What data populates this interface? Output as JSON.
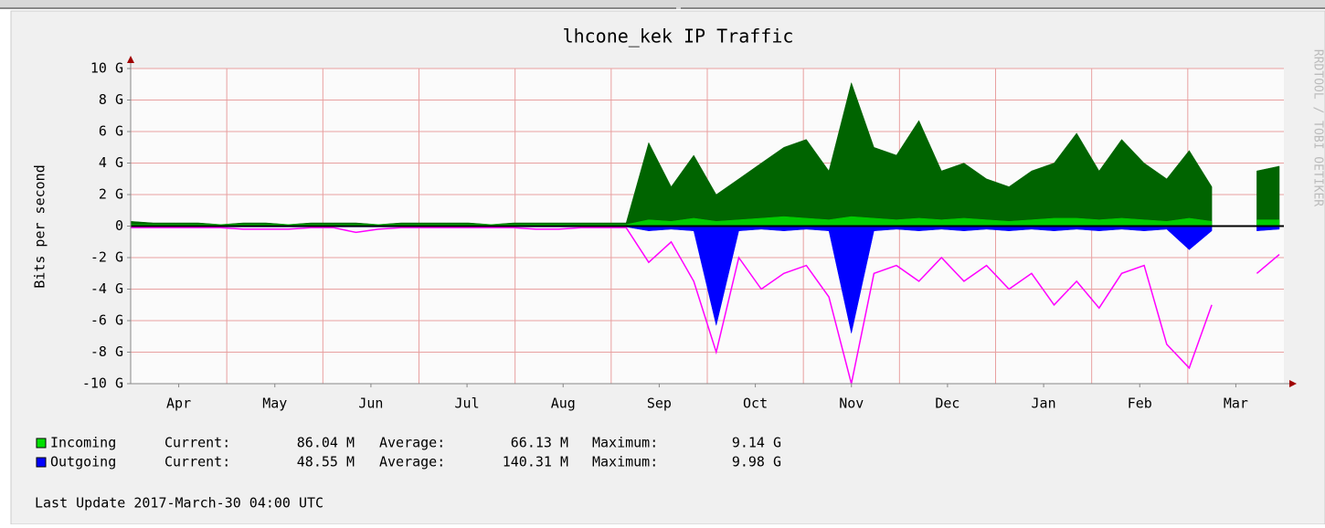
{
  "chart_data": {
    "type": "area",
    "title": "lhcone_kek IP Traffic",
    "y_label": "Bits per second",
    "watermark": "RRDTOOL / TOBI OETIKER",
    "x_labels": [
      "Apr",
      "May",
      "Jun",
      "Jul",
      "Aug",
      "Sep",
      "Oct",
      "Nov",
      "Dec",
      "Jan",
      "Feb",
      "Mar"
    ],
    "ylim": [
      -10,
      10
    ],
    "yticks": [
      {
        "value": -10,
        "label": "-10 G"
      },
      {
        "value": -8,
        "label": "-8 G"
      },
      {
        "value": -6,
        "label": "-6 G"
      },
      {
        "value": -4,
        "label": "-4 G"
      },
      {
        "value": -2,
        "label": "-2 G"
      },
      0,
      {
        "value": 2,
        "label": "2 G"
      },
      {
        "value": 4,
        "label": "4 G"
      },
      {
        "value": 6,
        "label": "6 G"
      },
      {
        "value": 8,
        "label": "8 G"
      },
      {
        "value": 10,
        "label": "10 G"
      }
    ],
    "grid": true,
    "series": [
      {
        "color": "#006400",
        "style": "area",
        "values": [
          0.3,
          0.2,
          0.2,
          0.2,
          0.1,
          0.2,
          0.2,
          0.1,
          0.2,
          0.2,
          0.2,
          0.1,
          0.2,
          0.2,
          0.2,
          0.2,
          0.1,
          0.2,
          0.2,
          0.2,
          0.2,
          0.2,
          0.2,
          5.3,
          2.5,
          4.5,
          2.0,
          3.0,
          4.0,
          5.0,
          5.5,
          3.5,
          9.1,
          5.0,
          4.5,
          6.7,
          3.5,
          4.0,
          3.0,
          2.5,
          3.5,
          4.0,
          5.9,
          3.5,
          5.5,
          4.0,
          3.0,
          4.8,
          2.5,
          null,
          3.5,
          3.8
        ]
      },
      {
        "color": "#00cc00",
        "style": "area",
        "values": [
          0.1,
          0.1,
          0.1,
          0.1,
          0.1,
          0.1,
          0.1,
          0.1,
          0.1,
          0.1,
          0.1,
          0.1,
          0.1,
          0.1,
          0.1,
          0.1,
          0.1,
          0.1,
          0.1,
          0.1,
          0.1,
          0.1,
          0.1,
          0.4,
          0.3,
          0.5,
          0.3,
          0.4,
          0.5,
          0.6,
          0.5,
          0.4,
          0.6,
          0.5,
          0.4,
          0.5,
          0.4,
          0.5,
          0.4,
          0.3,
          0.4,
          0.5,
          0.5,
          0.4,
          0.5,
          0.4,
          0.3,
          0.5,
          0.3,
          null,
          0.4,
          0.4
        ]
      },
      {
        "color": "#0000ff",
        "style": "area",
        "values": [
          -0.05,
          -0.05,
          -0.05,
          -0.05,
          -0.05,
          -0.05,
          -0.05,
          -0.05,
          -0.05,
          -0.05,
          -0.05,
          -0.05,
          -0.05,
          -0.05,
          -0.05,
          -0.05,
          -0.05,
          -0.05,
          -0.05,
          -0.05,
          -0.05,
          -0.05,
          -0.05,
          -0.3,
          -0.2,
          -0.3,
          -6.3,
          -0.3,
          -0.2,
          -0.3,
          -0.2,
          -0.3,
          -6.8,
          -0.3,
          -0.2,
          -0.3,
          -0.2,
          -0.3,
          -0.2,
          -0.3,
          -0.2,
          -0.3,
          -0.2,
          -0.3,
          -0.2,
          -0.3,
          -0.2,
          -1.5,
          -0.3,
          null,
          -0.3,
          -0.2
        ]
      },
      {
        "color": "#ff00ff",
        "style": "line",
        "values": [
          -0.1,
          -0.1,
          -0.1,
          -0.1,
          -0.1,
          -0.2,
          -0.2,
          -0.2,
          -0.1,
          -0.1,
          -0.4,
          -0.2,
          -0.1,
          -0.1,
          -0.1,
          -0.1,
          -0.1,
          -0.1,
          -0.2,
          -0.2,
          -0.1,
          -0.1,
          -0.1,
          -2.3,
          -1.0,
          -3.5,
          -8.0,
          -2.0,
          -4.0,
          -3.0,
          -2.5,
          -4.5,
          -10,
          -3.0,
          -2.5,
          -3.5,
          -2.0,
          -3.5,
          -2.5,
          -4.0,
          -3.0,
          -5.0,
          -3.5,
          -5.2,
          -3.0,
          -2.5,
          -7.5,
          -9.0,
          -5.0,
          null,
          -3.0,
          -1.8
        ]
      }
    ],
    "legend_labels": [
      "Current:",
      "Average:",
      "Maximum:"
    ],
    "legend": [
      {
        "name": "Incoming",
        "color": "#00e000",
        "current": "86.04 M",
        "average": "66.13 M",
        "maximum": "9.14 G"
      },
      {
        "name": "Outgoing",
        "color": "#0000ff",
        "current": "48.55 M",
        "average": "140.31 M",
        "maximum": "9.98 G"
      }
    ],
    "footer": "Last Update 2017-March-30 04:00 UTC"
  }
}
